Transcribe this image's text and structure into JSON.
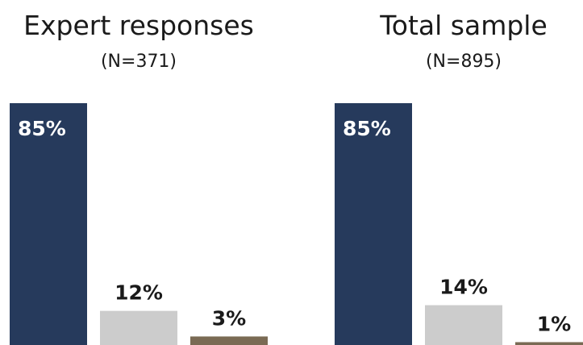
{
  "colors": {
    "series": [
      "#263a5c",
      "#cccccc",
      "#7a6a54"
    ],
    "inside_label": "#ffffff",
    "outside_label": "#1a1a1a"
  },
  "chart_data": [
    {
      "type": "bar",
      "title": "Expert responses",
      "subtitle": "(N=371)",
      "categories": [
        "",
        "",
        ""
      ],
      "values": [
        85,
        12,
        3
      ],
      "data_labels": [
        "85%",
        "12%",
        "3%"
      ],
      "ylim": [
        0,
        100
      ]
    },
    {
      "type": "bar",
      "title": "Total sample",
      "subtitle": "(N=895)",
      "categories": [
        "",
        "",
        ""
      ],
      "values": [
        85,
        14,
        1
      ],
      "data_labels": [
        "85%",
        "14%",
        "1%"
      ],
      "ylim": [
        0,
        100
      ]
    }
  ]
}
